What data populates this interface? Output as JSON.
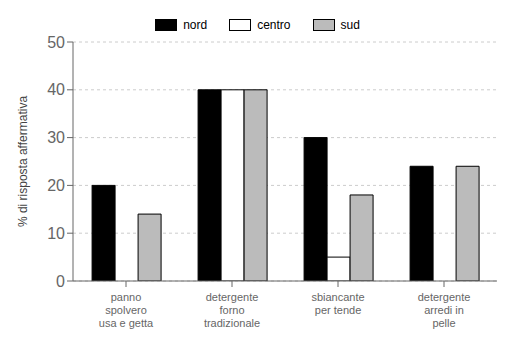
{
  "chart_data": {
    "type": "bar",
    "categories": [
      "panno\nspolvero\nusa e getta",
      "detergente\nforno\ntradizionale",
      "sbiancante\nper tende",
      "detergente\narredi in\npelle"
    ],
    "series": [
      {
        "name": "nord",
        "color": "#000000",
        "values": [
          20,
          40,
          30,
          24
        ]
      },
      {
        "name": "centro",
        "color": "#ffffff",
        "values": [
          0,
          40,
          5,
          0
        ]
      },
      {
        "name": "sud",
        "color": "#bbbbbb",
        "values": [
          14,
          40,
          18,
          24
        ]
      }
    ],
    "ylabel": "% di risposta affermativa",
    "ylim": [
      0,
      50
    ],
    "yticks": [
      0,
      10,
      20,
      30,
      40,
      50
    ],
    "grid": true,
    "legend": "top"
  }
}
